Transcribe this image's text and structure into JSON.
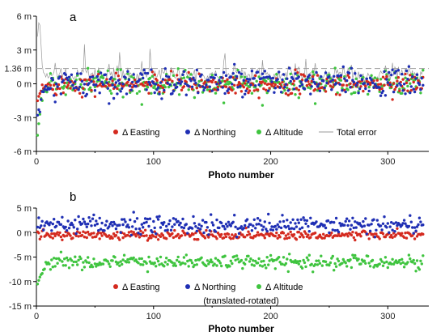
{
  "colors": {
    "easting": "#d42a1f",
    "northing": "#1f2fb4",
    "altitude": "#3fc43f",
    "total": "#9a9a9a",
    "reference": "#a8a8a8"
  },
  "chart_data": [
    {
      "type": "scatter",
      "panel_label": "a",
      "xlabel": "Photo number",
      "ylabel": "",
      "xlim": [
        0,
        335
      ],
      "ylim": [
        -6,
        6
      ],
      "x_ticks": [
        "0",
        "100",
        "200",
        "300"
      ],
      "y_ticks": [
        "-6 m",
        "-3 m",
        "0 m",
        "3 m",
        "6 m"
      ],
      "reference_line": {
        "value": 1.36,
        "label": "1.36 m",
        "style": "dashed"
      },
      "grid": false,
      "legend_position": "bottom-center",
      "legend": [
        "Δ Easting",
        "Δ Northing",
        "Δ Altitude",
        "Total error"
      ],
      "series_generation": {
        "n_points": 330,
        "easting": {
          "mean": 0.0,
          "std": 0.45,
          "start": -1.6,
          "min_start": -1.9
        },
        "northing": {
          "mean": 0.1,
          "std": 0.6,
          "start": -2.8
        },
        "altitude": {
          "mean": 0.0,
          "std": 0.55,
          "start": -4.6
        },
        "total_error": {
          "mean": 1.2,
          "start_peak": 5.4,
          "spike_values": [
            3.5,
            2.8,
            3.1,
            2.7,
            2.2
          ]
        }
      }
    },
    {
      "type": "scatter",
      "panel_label": "b",
      "xlabel": "Photo number",
      "ylabel": "",
      "xlim": [
        0,
        335
      ],
      "ylim": [
        -15,
        5
      ],
      "x_ticks": [
        "0",
        "100",
        "200",
        "300"
      ],
      "y_ticks": [
        "-15 m",
        "-10 m",
        "-5 m",
        "0 m",
        "5 m"
      ],
      "grid": false,
      "legend_position": "bottom-center",
      "legend": [
        "Δ Easting",
        "Δ Northing",
        "Δ Altitude"
      ],
      "note": "(translated-rotated)",
      "series_generation": {
        "n_points": 330,
        "easting": {
          "mean": -0.5,
          "std": 0.45
        },
        "northing": {
          "mean": 1.5,
          "std": 0.9
        },
        "altitude": {
          "mean": -6.0,
          "std": 0.7,
          "start": -11.0
        }
      }
    }
  ]
}
